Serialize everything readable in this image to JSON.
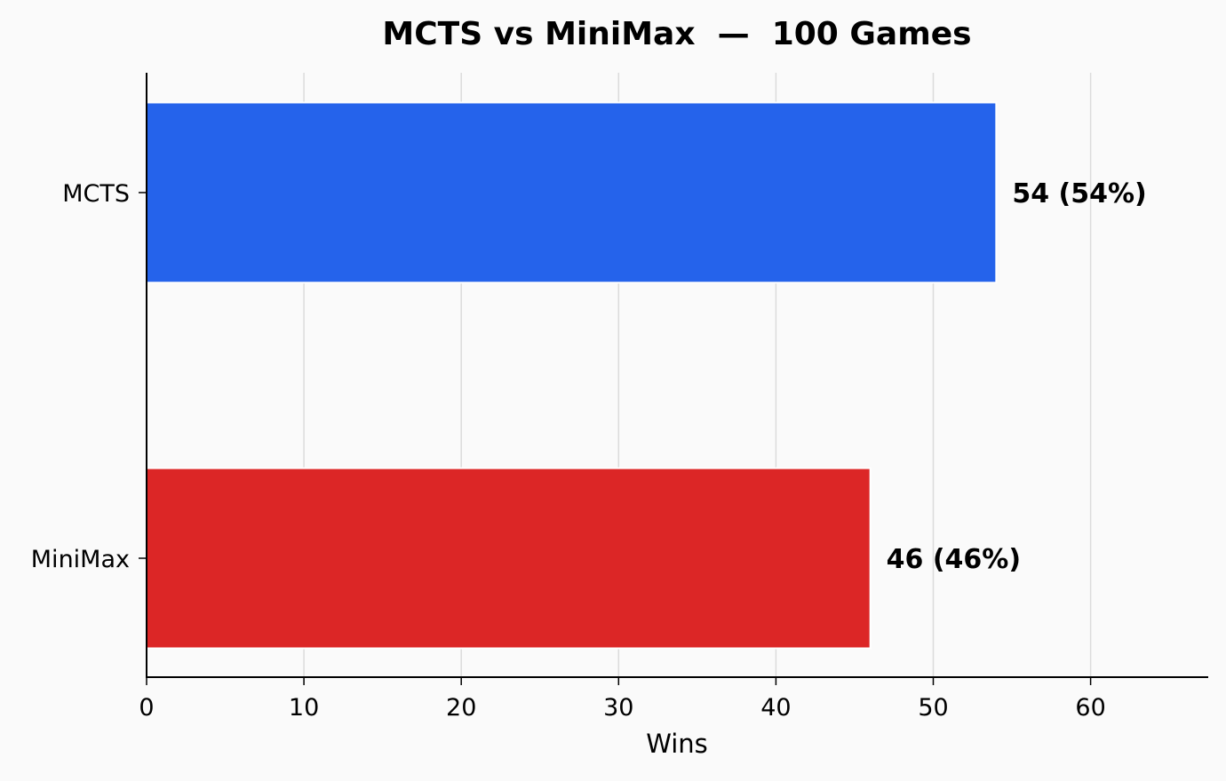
{
  "chart_data": {
    "type": "bar",
    "orientation": "horizontal",
    "title": "MCTS vs MiniMax  —  100 Games",
    "xlabel": "Wins",
    "ylabel": "",
    "categories": [
      "MCTS",
      "MiniMax"
    ],
    "values": [
      54,
      46
    ],
    "labels": [
      "54  (54%)",
      "46  (46%)"
    ],
    "colors": [
      "#2563eb",
      "#dc2626"
    ],
    "xlim": [
      0,
      67.5
    ],
    "xticks": [
      0,
      10,
      20,
      30,
      40,
      50,
      60
    ],
    "grid": "x",
    "legend": null
  }
}
